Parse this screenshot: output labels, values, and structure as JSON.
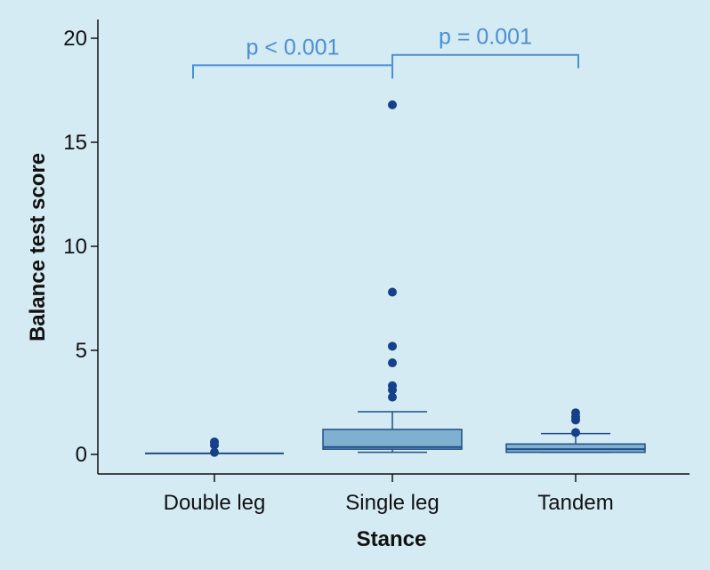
{
  "chart_data": {
    "type": "box",
    "xlabel": "Stance",
    "ylabel": "Balance test score",
    "ylim": [
      0,
      20
    ],
    "yticks": [
      0,
      5,
      10,
      15,
      20
    ],
    "categories": [
      "Double leg",
      "Single leg",
      "Tandem"
    ],
    "boxes": [
      {
        "category": "Double leg",
        "whisker_low": 0.05,
        "q1": 0.05,
        "median": 0.05,
        "q3": 0.05,
        "whisker_high": 0.05,
        "outliers": [
          0.1,
          0.45,
          0.6
        ]
      },
      {
        "category": "Single leg",
        "whisker_low": 0.1,
        "q1": 0.25,
        "median": 0.35,
        "q3": 1.2,
        "whisker_high": 2.05,
        "outliers": [
          2.75,
          3.1,
          3.3,
          4.4,
          5.2,
          7.8,
          16.8
        ]
      },
      {
        "category": "Tandem",
        "whisker_low": 0.1,
        "q1": 0.1,
        "median": 0.25,
        "q3": 0.5,
        "whisker_high": 1.0,
        "outliers": [
          1.05,
          1.65,
          1.8,
          2.0
        ]
      }
    ],
    "annotations": [
      {
        "text": "p < 0.001",
        "from": "Double leg",
        "to": "Single leg",
        "y": 18.7
      },
      {
        "text": "p = 0.001",
        "from": "Single leg",
        "to": "Tandem",
        "y": 19.2
      }
    ],
    "colors": {
      "box_fill": "#7fb0cf",
      "box_stroke": "#1f4f87",
      "point": "#17408b",
      "annotation": "#4a8ed6",
      "axis": "#111111"
    }
  }
}
